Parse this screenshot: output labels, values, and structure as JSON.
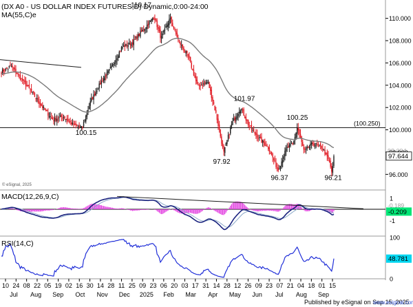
{
  "colors": {
    "up": "#1a1a1a",
    "down": "#e0161f",
    "ma": "#7a7a7a",
    "macd": "#1a237e",
    "signal": "#8aa8c8",
    "hist": "#e23fe0",
    "rsi": "#1f2ed8",
    "trend": "#1a1a1a",
    "price_tag_bg": "#ffffff",
    "macd_tag_bg": "#00e676",
    "rsi_tag_bg": "#00d6f0"
  },
  "chart_data": [
    {
      "type": "candlestick",
      "title": "(DX A0 - US DOLLAR INDEX FUTURES,D) Dynamic,0:00-24:00",
      "indicator_label": "MA(55,C)e",
      "copyright": "© eSignal, 2025",
      "ylim": [
        94.6,
        111.4
      ],
      "yticks": [
        "110.000",
        "108.000",
        "106.000",
        "104.000",
        "102.000",
        "100.000",
        "98.000",
        "96.000"
      ],
      "last_price": "97.644",
      "ghost_price": "98.094",
      "horizontal_level": "(100.250)",
      "anchors": [
        {
          "x": 0,
          "y": 105.2
        },
        {
          "x": 14,
          "y": 105.7
        },
        {
          "x": 26,
          "y": 104.8
        },
        {
          "x": 45,
          "y": 103.3
        },
        {
          "x": 60,
          "y": 102.0
        },
        {
          "x": 75,
          "y": 100.9
        },
        {
          "x": 90,
          "y": 101.2
        },
        {
          "x": 103,
          "y": 100.5
        },
        {
          "x": 117,
          "y": 100.15
        },
        {
          "x": 130,
          "y": 102.6
        },
        {
          "x": 145,
          "y": 104.3
        },
        {
          "x": 160,
          "y": 105.6
        },
        {
          "x": 175,
          "y": 107.4
        },
        {
          "x": 190,
          "y": 107.8
        },
        {
          "x": 205,
          "y": 108.9
        },
        {
          "x": 222,
          "y": 110.17
        },
        {
          "x": 232,
          "y": 108.2
        },
        {
          "x": 245,
          "y": 110.0
        },
        {
          "x": 258,
          "y": 107.9
        },
        {
          "x": 272,
          "y": 106.5
        },
        {
          "x": 285,
          "y": 103.9
        },
        {
          "x": 300,
          "y": 104.3
        },
        {
          "x": 312,
          "y": 101.4
        },
        {
          "x": 323,
          "y": 97.92
        },
        {
          "x": 335,
          "y": 100.6
        },
        {
          "x": 348,
          "y": 101.97
        },
        {
          "x": 360,
          "y": 100.3
        },
        {
          "x": 375,
          "y": 99.2
        },
        {
          "x": 388,
          "y": 98.4
        },
        {
          "x": 402,
          "y": 96.37
        },
        {
          "x": 414,
          "y": 98.3
        },
        {
          "x": 424,
          "y": 98.8
        },
        {
          "x": 430,
          "y": 100.25
        },
        {
          "x": 440,
          "y": 98.0
        },
        {
          "x": 452,
          "y": 98.8
        },
        {
          "x": 466,
          "y": 98.4
        },
        {
          "x": 476,
          "y": 97.2
        },
        {
          "x": 480,
          "y": 96.21
        },
        {
          "x": 485,
          "y": 97.64
        }
      ],
      "annotations": [
        {
          "text": "110.17",
          "x": 205,
          "y": 111.0
        },
        {
          "text": "100.15",
          "x": 125,
          "y": 99.55
        },
        {
          "text": "101.97",
          "x": 355,
          "y": 102.6
        },
        {
          "text": "100.25",
          "x": 432,
          "y": 100.9
        },
        {
          "text": "97.92",
          "x": 322,
          "y": 96.95
        },
        {
          "text": "96.37",
          "x": 406,
          "y": 95.5
        },
        {
          "text": "96.21",
          "x": 484,
          "y": 95.5
        }
      ]
    },
    {
      "type": "line",
      "title": "MACD(12,26,9,C)",
      "ylim": [
        -2.4,
        1.6
      ],
      "yticks": [
        "1",
        "0",
        "-1"
      ],
      "last_value": "-0.209",
      "ghost_value": "-0.189"
    },
    {
      "type": "line",
      "title": "RSI(14,C)",
      "ylim": [
        0,
        100
      ],
      "yticks": [
        "100",
        "50",
        "0"
      ],
      "last_value": "48.781"
    }
  ],
  "x_axis": {
    "day_labels": [
      "10",
      "24",
      "08",
      "22",
      "05",
      "19",
      "02",
      "16",
      "30",
      "14",
      "28",
      "11",
      "25",
      "09",
      "23",
      "06",
      "20",
      "03",
      "17",
      "31",
      "14",
      "28",
      "12",
      "26",
      "09",
      "23",
      "07",
      "21",
      "04",
      "18",
      "01",
      "15"
    ],
    "month_labels": [
      "Jul",
      "Aug",
      "Sep",
      "Oct",
      "Nov",
      "Dec",
      "2025",
      "Feb",
      "Mar",
      "Apr",
      "May",
      "Jun",
      "Jul",
      "Aug",
      "Sep"
    ]
  },
  "footer": {
    "publisher": "Published by eSignal on Sep 15, 2025",
    "site": "www.esignal.com"
  }
}
